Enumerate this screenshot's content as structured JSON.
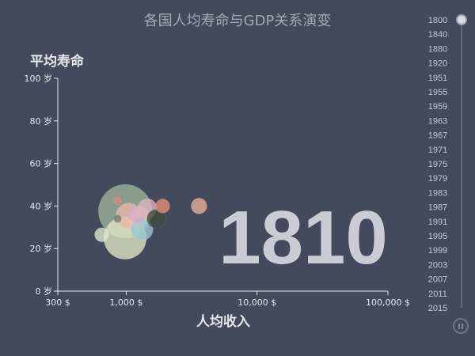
{
  "title": "各国人均寿命与GDP关系演变",
  "chart_data": {
    "type": "scatter",
    "title": "各国人均寿命与GDP关系演变",
    "ylabel": "平均寿命",
    "xlabel": "人均收入",
    "xscale": "log",
    "xlim": [
      300,
      100000
    ],
    "ylim": [
      0,
      100
    ],
    "x_ticks": [
      {
        "value": 300,
        "label": "300 $"
      },
      {
        "value": 1000,
        "label": "1,000 $"
      },
      {
        "value": 10000,
        "label": "10,000 $"
      },
      {
        "value": 100000,
        "label": "100,000 $"
      }
    ],
    "y_ticks": [
      {
        "value": 0,
        "label": "0 岁"
      },
      {
        "value": 20,
        "label": "20 岁"
      },
      {
        "value": 40,
        "label": "40 岁"
      },
      {
        "value": 60,
        "label": "60 岁"
      },
      {
        "value": 80,
        "label": "80 岁"
      },
      {
        "value": 100,
        "label": "100 岁"
      }
    ],
    "current_year": "1810",
    "points": [
      {
        "income": 985,
        "life": 37.5,
        "size": 34,
        "color": "#9fb39a"
      },
      {
        "income": 980,
        "life": 25.0,
        "size": 27,
        "color": "#e2e6c4"
      },
      {
        "income": 1045,
        "life": 35.5,
        "size": 16,
        "color": "#e9b7a8"
      },
      {
        "income": 1260,
        "life": 35.0,
        "size": 13,
        "color": "#f1d29e"
      },
      {
        "income": 1320,
        "life": 29.0,
        "size": 14,
        "color": "#9ac6d4"
      },
      {
        "income": 1200,
        "life": 36.0,
        "size": 11,
        "color": "#d5a6c6"
      },
      {
        "income": 1450,
        "life": 39.0,
        "size": 12,
        "color": "#dcb3bb"
      },
      {
        "income": 1700,
        "life": 34.0,
        "size": 12,
        "color": "#3f4a3c"
      },
      {
        "income": 1900,
        "life": 40.0,
        "size": 9,
        "color": "#e58f76"
      },
      {
        "income": 3600,
        "life": 40.0,
        "size": 10,
        "color": "#e8b19a"
      },
      {
        "income": 650,
        "life": 26.5,
        "size": 9,
        "color": "#dfe7cf"
      },
      {
        "income": 860,
        "life": 42.5,
        "size": 5,
        "color": "#d98a7a"
      },
      {
        "income": 860,
        "life": 34.0,
        "size": 5,
        "color": "#717d6a"
      }
    ]
  },
  "timeline": {
    "years": [
      "1800",
      "1840",
      "1880",
      "1920",
      "1951",
      "1955",
      "1959",
      "1963",
      "1967",
      "1971",
      "1975",
      "1979",
      "1983",
      "1987",
      "1991",
      "1995",
      "1999",
      "2003",
      "2007",
      "2011",
      "2015"
    ],
    "current_index": 0
  }
}
